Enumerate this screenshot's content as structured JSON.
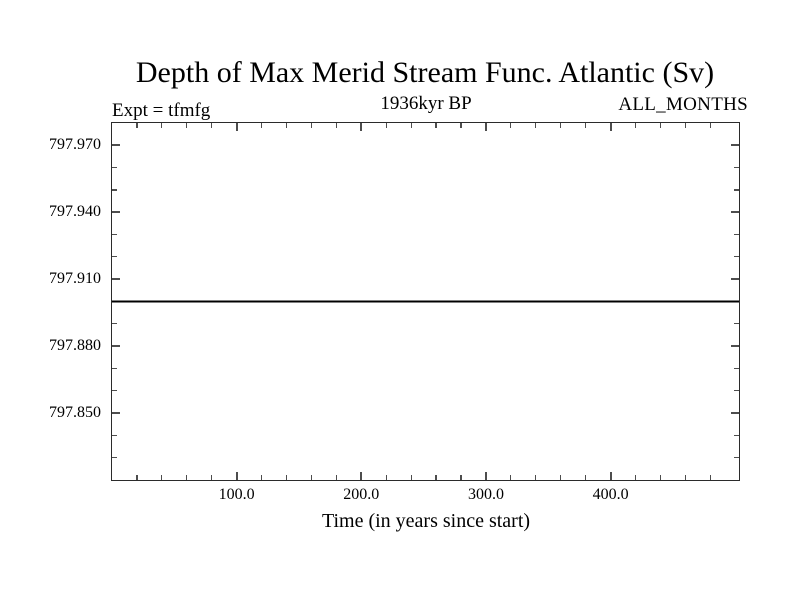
{
  "chart_data": {
    "type": "line",
    "title": "Depth of Max Merid Stream Func. Atlantic (Sv)",
    "subtitle_left": "Expt = tfmfg",
    "subtitle_center": "1936kyr BP",
    "subtitle_right": "ALL_MONTHS",
    "xlabel": "Time (in years since start)",
    "ylabel": "",
    "xlim": [
      0,
      503
    ],
    "ylim": [
      797.82,
      797.98
    ],
    "x_major_ticks": [
      100,
      200,
      300,
      400
    ],
    "x_major_tick_labels": [
      "100.0",
      "200.0",
      "300.0",
      "400.0"
    ],
    "x_minor_tick_step": 20,
    "y_major_ticks": [
      797.97,
      797.94,
      797.91,
      797.88,
      797.85
    ],
    "y_major_tick_labels": [
      "797.970",
      "797.940",
      "797.910",
      "797.880",
      "797.850"
    ],
    "y_minor_tick_step": 0.01,
    "grid": false,
    "legend": "none",
    "series": [
      {
        "name": "depth-of-max-merid-stream-func-atlantic",
        "x": [
          0,
          503
        ],
        "y": [
          797.9,
          797.9
        ],
        "color": "#000000",
        "width": 2
      }
    ]
  },
  "colors": {
    "background": "#ffffff",
    "text": "#000000",
    "axis_box": "#2b2b2b",
    "tick": "#4d4d4d",
    "line": "#000000"
  }
}
